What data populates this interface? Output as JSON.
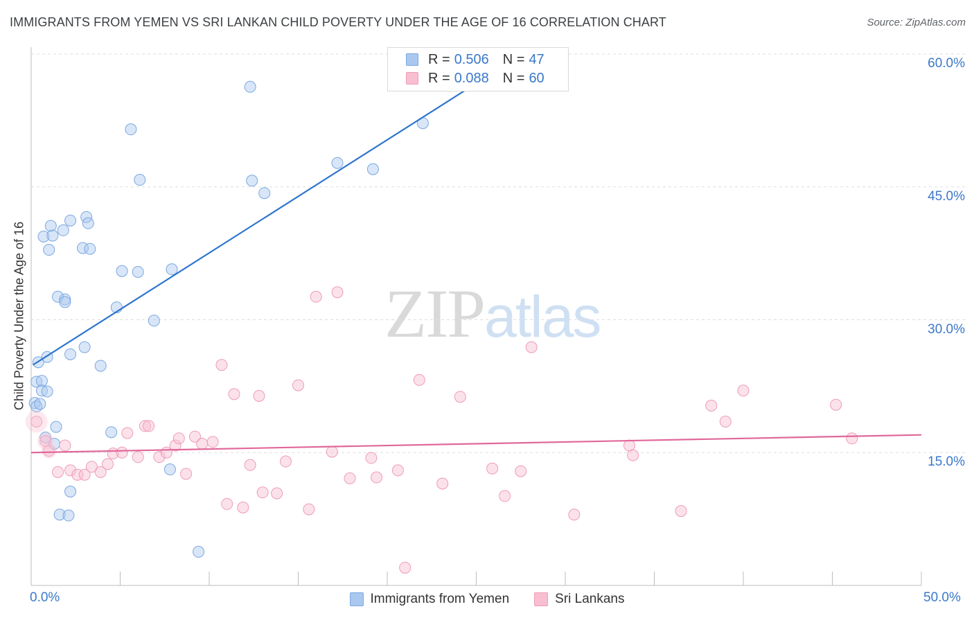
{
  "chart_data": {
    "type": "scatter",
    "title": "IMMIGRANTS FROM YEMEN VS SRI LANKAN CHILD POVERTY UNDER THE AGE OF 16 CORRELATION CHART",
    "source": "Source: ZipAtlas.com",
    "xlabel": "",
    "ylabel": "Child Poverty Under the Age of 16",
    "xlim": [
      0,
      50
    ],
    "ylim": [
      0,
      60
    ],
    "x_tick_labels": [
      "0.0%",
      "50.0%"
    ],
    "y_ticks": [
      15,
      30,
      45,
      60
    ],
    "y_tick_labels": [
      "15.0%",
      "30.0%",
      "45.0%",
      "60.0%"
    ],
    "watermark": {
      "zip": "ZIP",
      "atlas": "atlas"
    },
    "legend_stats": [
      {
        "r_label": "R =",
        "r": "0.506",
        "n_label": "N =",
        "n": "47"
      },
      {
        "r_label": "R =",
        "r": "0.088",
        "n_label": "N =",
        "n": "60"
      }
    ],
    "series": [
      {
        "name": "Immigrants from Yemen",
        "color": "#aac8ef",
        "stroke": "#7aa7e0",
        "line_color": "#2e75cc",
        "trend": {
          "x0": 0.1,
          "y0": 24.9,
          "x1": 25.0,
          "y1": 56.7
        },
        "points": [
          [
            0.2,
            20.6
          ],
          [
            0.3,
            20.2
          ],
          [
            0.3,
            23.0
          ],
          [
            0.4,
            25.2
          ],
          [
            0.5,
            20.5
          ],
          [
            0.6,
            23.1
          ],
          [
            0.6,
            22.0
          ],
          [
            0.7,
            39.4
          ],
          [
            0.8,
            16.7
          ],
          [
            0.9,
            25.8
          ],
          [
            0.9,
            21.9
          ],
          [
            1.0,
            37.9
          ],
          [
            1.1,
            40.6
          ],
          [
            1.2,
            39.5
          ],
          [
            1.3,
            16.0
          ],
          [
            1.4,
            17.9
          ],
          [
            1.5,
            32.6
          ],
          [
            1.6,
            8.0
          ],
          [
            1.8,
            40.1
          ],
          [
            1.9,
            32.3
          ],
          [
            1.9,
            32.0
          ],
          [
            2.1,
            7.9
          ],
          [
            2.2,
            10.6
          ],
          [
            2.2,
            26.1
          ],
          [
            2.2,
            41.2
          ],
          [
            2.9,
            38.1
          ],
          [
            3.0,
            26.9
          ],
          [
            3.1,
            41.6
          ],
          [
            3.2,
            40.9
          ],
          [
            3.3,
            38.0
          ],
          [
            3.9,
            24.8
          ],
          [
            4.5,
            17.3
          ],
          [
            4.8,
            31.4
          ],
          [
            5.1,
            35.5
          ],
          [
            5.6,
            51.5
          ],
          [
            6.0,
            35.4
          ],
          [
            6.1,
            45.8
          ],
          [
            6.9,
            29.9
          ],
          [
            7.8,
            13.1
          ],
          [
            7.9,
            35.7
          ],
          [
            9.4,
            3.8
          ],
          [
            12.3,
            56.3
          ],
          [
            12.4,
            45.7
          ],
          [
            13.1,
            44.3
          ],
          [
            17.2,
            47.7
          ],
          [
            19.2,
            47.0
          ],
          [
            22.0,
            52.2
          ]
        ]
      },
      {
        "name": "Sri Lankans",
        "color": "#f7bfd0",
        "stroke": "#ef9bb6",
        "line_color": "#e0689a",
        "trend": {
          "x0": 0.0,
          "y0": 15.0,
          "x1": 50.0,
          "y1": 17.0
        },
        "points": [
          [
            0.3,
            18.5
          ],
          [
            0.8,
            16.3
          ],
          [
            1.0,
            15.2
          ],
          [
            1.5,
            12.8
          ],
          [
            1.9,
            15.8
          ],
          [
            2.2,
            13.0
          ],
          [
            2.6,
            12.5
          ],
          [
            3.0,
            12.5
          ],
          [
            3.4,
            13.4
          ],
          [
            3.9,
            12.8
          ],
          [
            4.3,
            13.7
          ],
          [
            4.6,
            14.9
          ],
          [
            5.1,
            15.0
          ],
          [
            5.4,
            17.2
          ],
          [
            6.0,
            14.5
          ],
          [
            6.4,
            18.0
          ],
          [
            6.6,
            18.0
          ],
          [
            7.2,
            14.5
          ],
          [
            7.6,
            15.0
          ],
          [
            8.1,
            15.8
          ],
          [
            8.3,
            16.6
          ],
          [
            8.7,
            12.6
          ],
          [
            9.2,
            16.8
          ],
          [
            9.6,
            16.0
          ],
          [
            10.2,
            16.2
          ],
          [
            10.7,
            24.9
          ],
          [
            11.0,
            9.2
          ],
          [
            11.4,
            21.6
          ],
          [
            11.9,
            8.8
          ],
          [
            12.3,
            13.6
          ],
          [
            12.8,
            21.4
          ],
          [
            13.0,
            10.5
          ],
          [
            13.8,
            10.4
          ],
          [
            14.3,
            14.0
          ],
          [
            15.0,
            22.6
          ],
          [
            15.6,
            8.6
          ],
          [
            16.0,
            32.6
          ],
          [
            16.9,
            15.1
          ],
          [
            17.2,
            33.1
          ],
          [
            17.9,
            12.1
          ],
          [
            19.1,
            14.4
          ],
          [
            19.4,
            12.2
          ],
          [
            20.6,
            13.0
          ],
          [
            21.0,
            2.0
          ],
          [
            21.8,
            23.2
          ],
          [
            23.1,
            11.5
          ],
          [
            24.1,
            21.3
          ],
          [
            25.9,
            13.2
          ],
          [
            26.6,
            10.1
          ],
          [
            27.5,
            12.9
          ],
          [
            28.1,
            26.9
          ],
          [
            30.5,
            8.0
          ],
          [
            33.6,
            15.8
          ],
          [
            33.8,
            14.7
          ],
          [
            36.5,
            8.4
          ],
          [
            38.2,
            20.3
          ],
          [
            39.0,
            18.5
          ],
          [
            40.0,
            22.0
          ],
          [
            45.2,
            20.4
          ],
          [
            46.1,
            16.6
          ]
        ]
      }
    ]
  }
}
